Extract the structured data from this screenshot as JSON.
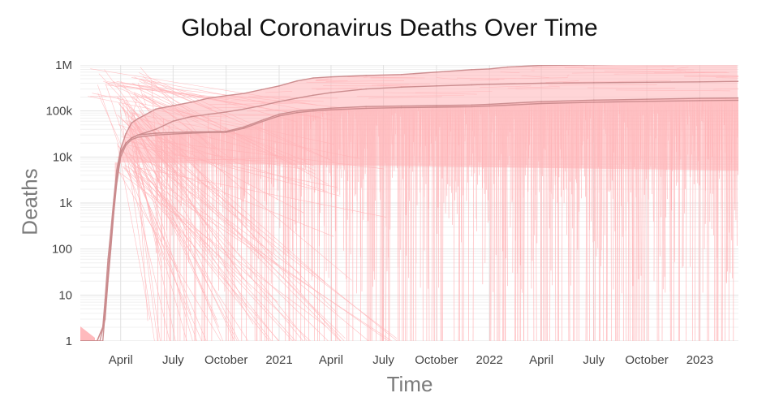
{
  "chart_data": {
    "type": "line",
    "title": "Global Coronavirus Deaths Over Time",
    "xlabel": "Time",
    "ylabel": "Deaths",
    "x_scale": "date",
    "y_scale": "log",
    "xlim": [
      "2020-01-22",
      "2023-03-09"
    ],
    "ylim": [
      1,
      1000000
    ],
    "x_tick_labels": [
      {
        "date": "2020-04-01",
        "label": "April"
      },
      {
        "date": "2020-07-01",
        "label": "July"
      },
      {
        "date": "2020-10-01",
        "label": "October"
      },
      {
        "date": "2021-01-01",
        "label": "2021"
      },
      {
        "date": "2021-04-01",
        "label": "April"
      },
      {
        "date": "2021-07-01",
        "label": "July"
      },
      {
        "date": "2021-10-01",
        "label": "October"
      },
      {
        "date": "2022-01-01",
        "label": "2022"
      },
      {
        "date": "2022-04-01",
        "label": "April"
      },
      {
        "date": "2022-07-01",
        "label": "July"
      },
      {
        "date": "2022-10-01",
        "label": "October"
      },
      {
        "date": "2023-01-01",
        "label": "2023"
      }
    ],
    "y_tick_labels": [
      {
        "value": 1,
        "label": "1"
      },
      {
        "value": 10,
        "label": "10"
      },
      {
        "value": 100,
        "label": "100"
      },
      {
        "value": 1000,
        "label": "1k"
      },
      {
        "value": 10000,
        "label": "10k"
      },
      {
        "value": 100000,
        "label": "100k"
      },
      {
        "value": 1000000,
        "label": "1M"
      }
    ],
    "grid": true,
    "legend": "none",
    "colors": {
      "series_fill": "#ffb3b6",
      "series_line": "#c98a8c",
      "grid": "#e6e6e6"
    },
    "series": [
      {
        "points": [
          [
            "2020-01-22",
            1
          ],
          [
            "2020-02-20",
            1
          ],
          [
            "2020-03-01",
            2
          ],
          [
            "2020-03-05",
            8
          ],
          [
            "2020-03-10",
            60
          ],
          [
            "2020-03-15",
            250
          ],
          [
            "2020-03-20",
            1200
          ],
          [
            "2020-03-25",
            5000
          ],
          [
            "2020-04-01",
            15000
          ],
          [
            "2020-04-10",
            32000
          ],
          [
            "2020-04-20",
            55000
          ],
          [
            "2020-05-01",
            68000
          ],
          [
            "2020-06-01",
            110000
          ],
          [
            "2020-07-01",
            130000
          ],
          [
            "2020-08-01",
            155000
          ],
          [
            "2020-09-01",
            190000
          ],
          [
            "2020-10-01",
            215000
          ],
          [
            "2020-11-01",
            240000
          ],
          [
            "2020-12-01",
            290000
          ],
          [
            "2021-01-01",
            350000
          ],
          [
            "2021-02-01",
            450000
          ],
          [
            "2021-03-01",
            520000
          ],
          [
            "2021-04-01",
            550000
          ],
          [
            "2021-06-01",
            590000
          ],
          [
            "2021-08-01",
            620000
          ],
          [
            "2021-10-01",
            700000
          ],
          [
            "2021-12-01",
            790000
          ],
          [
            "2022-01-01",
            820000
          ],
          [
            "2022-02-01",
            900000
          ],
          [
            "2022-04-01",
            980000
          ],
          [
            "2022-07-01",
            1010000
          ],
          [
            "2022-10-01",
            1060000
          ],
          [
            "2023-01-01",
            1090000
          ],
          [
            "2023-03-09",
            1120000
          ]
        ]
      },
      {
        "points": [
          [
            "2020-01-22",
            1
          ],
          [
            "2020-02-20",
            1
          ],
          [
            "2020-03-01",
            2
          ],
          [
            "2020-03-05",
            5
          ],
          [
            "2020-03-10",
            30
          ],
          [
            "2020-03-15",
            180
          ],
          [
            "2020-03-20",
            900
          ],
          [
            "2020-03-25",
            3500
          ],
          [
            "2020-04-01",
            13000
          ],
          [
            "2020-04-10",
            20000
          ],
          [
            "2020-04-20",
            26000
          ],
          [
            "2020-05-01",
            30000
          ],
          [
            "2020-06-01",
            40000
          ],
          [
            "2020-07-01",
            60000
          ],
          [
            "2020-08-01",
            75000
          ],
          [
            "2020-09-01",
            85000
          ],
          [
            "2020-10-01",
            95000
          ],
          [
            "2020-11-01",
            110000
          ],
          [
            "2020-12-01",
            130000
          ],
          [
            "2021-01-01",
            160000
          ],
          [
            "2021-02-01",
            190000
          ],
          [
            "2021-03-01",
            220000
          ],
          [
            "2021-04-01",
            250000
          ],
          [
            "2021-06-01",
            300000
          ],
          [
            "2021-08-01",
            330000
          ],
          [
            "2021-10-01",
            350000
          ],
          [
            "2021-12-01",
            370000
          ],
          [
            "2022-01-01",
            380000
          ],
          [
            "2022-04-01",
            400000
          ],
          [
            "2022-07-01",
            410000
          ],
          [
            "2022-10-01",
            420000
          ],
          [
            "2023-01-01",
            430000
          ],
          [
            "2023-03-09",
            440000
          ]
        ]
      },
      {
        "points": [
          [
            "2020-01-22",
            1
          ],
          [
            "2020-02-20",
            1
          ],
          [
            "2020-03-01",
            1
          ],
          [
            "2020-03-05",
            4
          ],
          [
            "2020-03-10",
            25
          ],
          [
            "2020-03-15",
            120
          ],
          [
            "2020-03-20",
            700
          ],
          [
            "2020-03-25",
            3000
          ],
          [
            "2020-04-01",
            12000
          ],
          [
            "2020-04-10",
            20000
          ],
          [
            "2020-04-20",
            26000
          ],
          [
            "2020-05-01",
            30000
          ],
          [
            "2020-06-01",
            33000
          ],
          [
            "2020-07-01",
            34000
          ],
          [
            "2020-08-01",
            35000
          ],
          [
            "2020-09-01",
            35500
          ],
          [
            "2020-10-01",
            36000
          ],
          [
            "2020-11-01",
            45000
          ],
          [
            "2020-12-01",
            62000
          ],
          [
            "2021-01-01",
            85000
          ],
          [
            "2021-02-01",
            100000
          ],
          [
            "2021-03-01",
            108000
          ],
          [
            "2021-04-01",
            115000
          ],
          [
            "2021-06-01",
            125000
          ],
          [
            "2021-08-01",
            128000
          ],
          [
            "2021-10-01",
            131000
          ],
          [
            "2021-12-01",
            135000
          ],
          [
            "2022-01-01",
            140000
          ],
          [
            "2022-04-01",
            160000
          ],
          [
            "2022-07-01",
            172000
          ],
          [
            "2022-10-01",
            180000
          ],
          [
            "2023-01-01",
            188000
          ],
          [
            "2023-03-09",
            191000
          ]
        ]
      },
      {
        "points": [
          [
            "2020-01-22",
            1
          ],
          [
            "2020-02-25",
            1
          ],
          [
            "2020-03-05",
            3
          ],
          [
            "2020-03-10",
            20
          ],
          [
            "2020-03-15",
            100
          ],
          [
            "2020-03-20",
            600
          ],
          [
            "2020-03-25",
            2500
          ],
          [
            "2020-04-01",
            10000
          ],
          [
            "2020-04-10",
            18000
          ],
          [
            "2020-04-20",
            24000
          ],
          [
            "2020-05-01",
            27000
          ],
          [
            "2020-06-01",
            30000
          ],
          [
            "2020-07-01",
            31500
          ],
          [
            "2020-08-01",
            33000
          ],
          [
            "2020-09-01",
            34000
          ],
          [
            "2020-10-01",
            34500
          ],
          [
            "2020-11-01",
            42000
          ],
          [
            "2020-12-01",
            58000
          ],
          [
            "2021-01-01",
            78000
          ],
          [
            "2021-02-01",
            92000
          ],
          [
            "2021-03-01",
            100000
          ],
          [
            "2021-04-01",
            106000
          ],
          [
            "2021-06-01",
            114000
          ],
          [
            "2021-08-01",
            118000
          ],
          [
            "2021-10-01",
            121000
          ],
          [
            "2021-12-01",
            124000
          ],
          [
            "2022-01-01",
            128000
          ],
          [
            "2022-04-01",
            145000
          ],
          [
            "2022-07-01",
            155000
          ],
          [
            "2022-10-01",
            162000
          ],
          [
            "2023-01-01",
            168000
          ],
          [
            "2023-03-09",
            171000
          ]
        ]
      }
    ]
  }
}
